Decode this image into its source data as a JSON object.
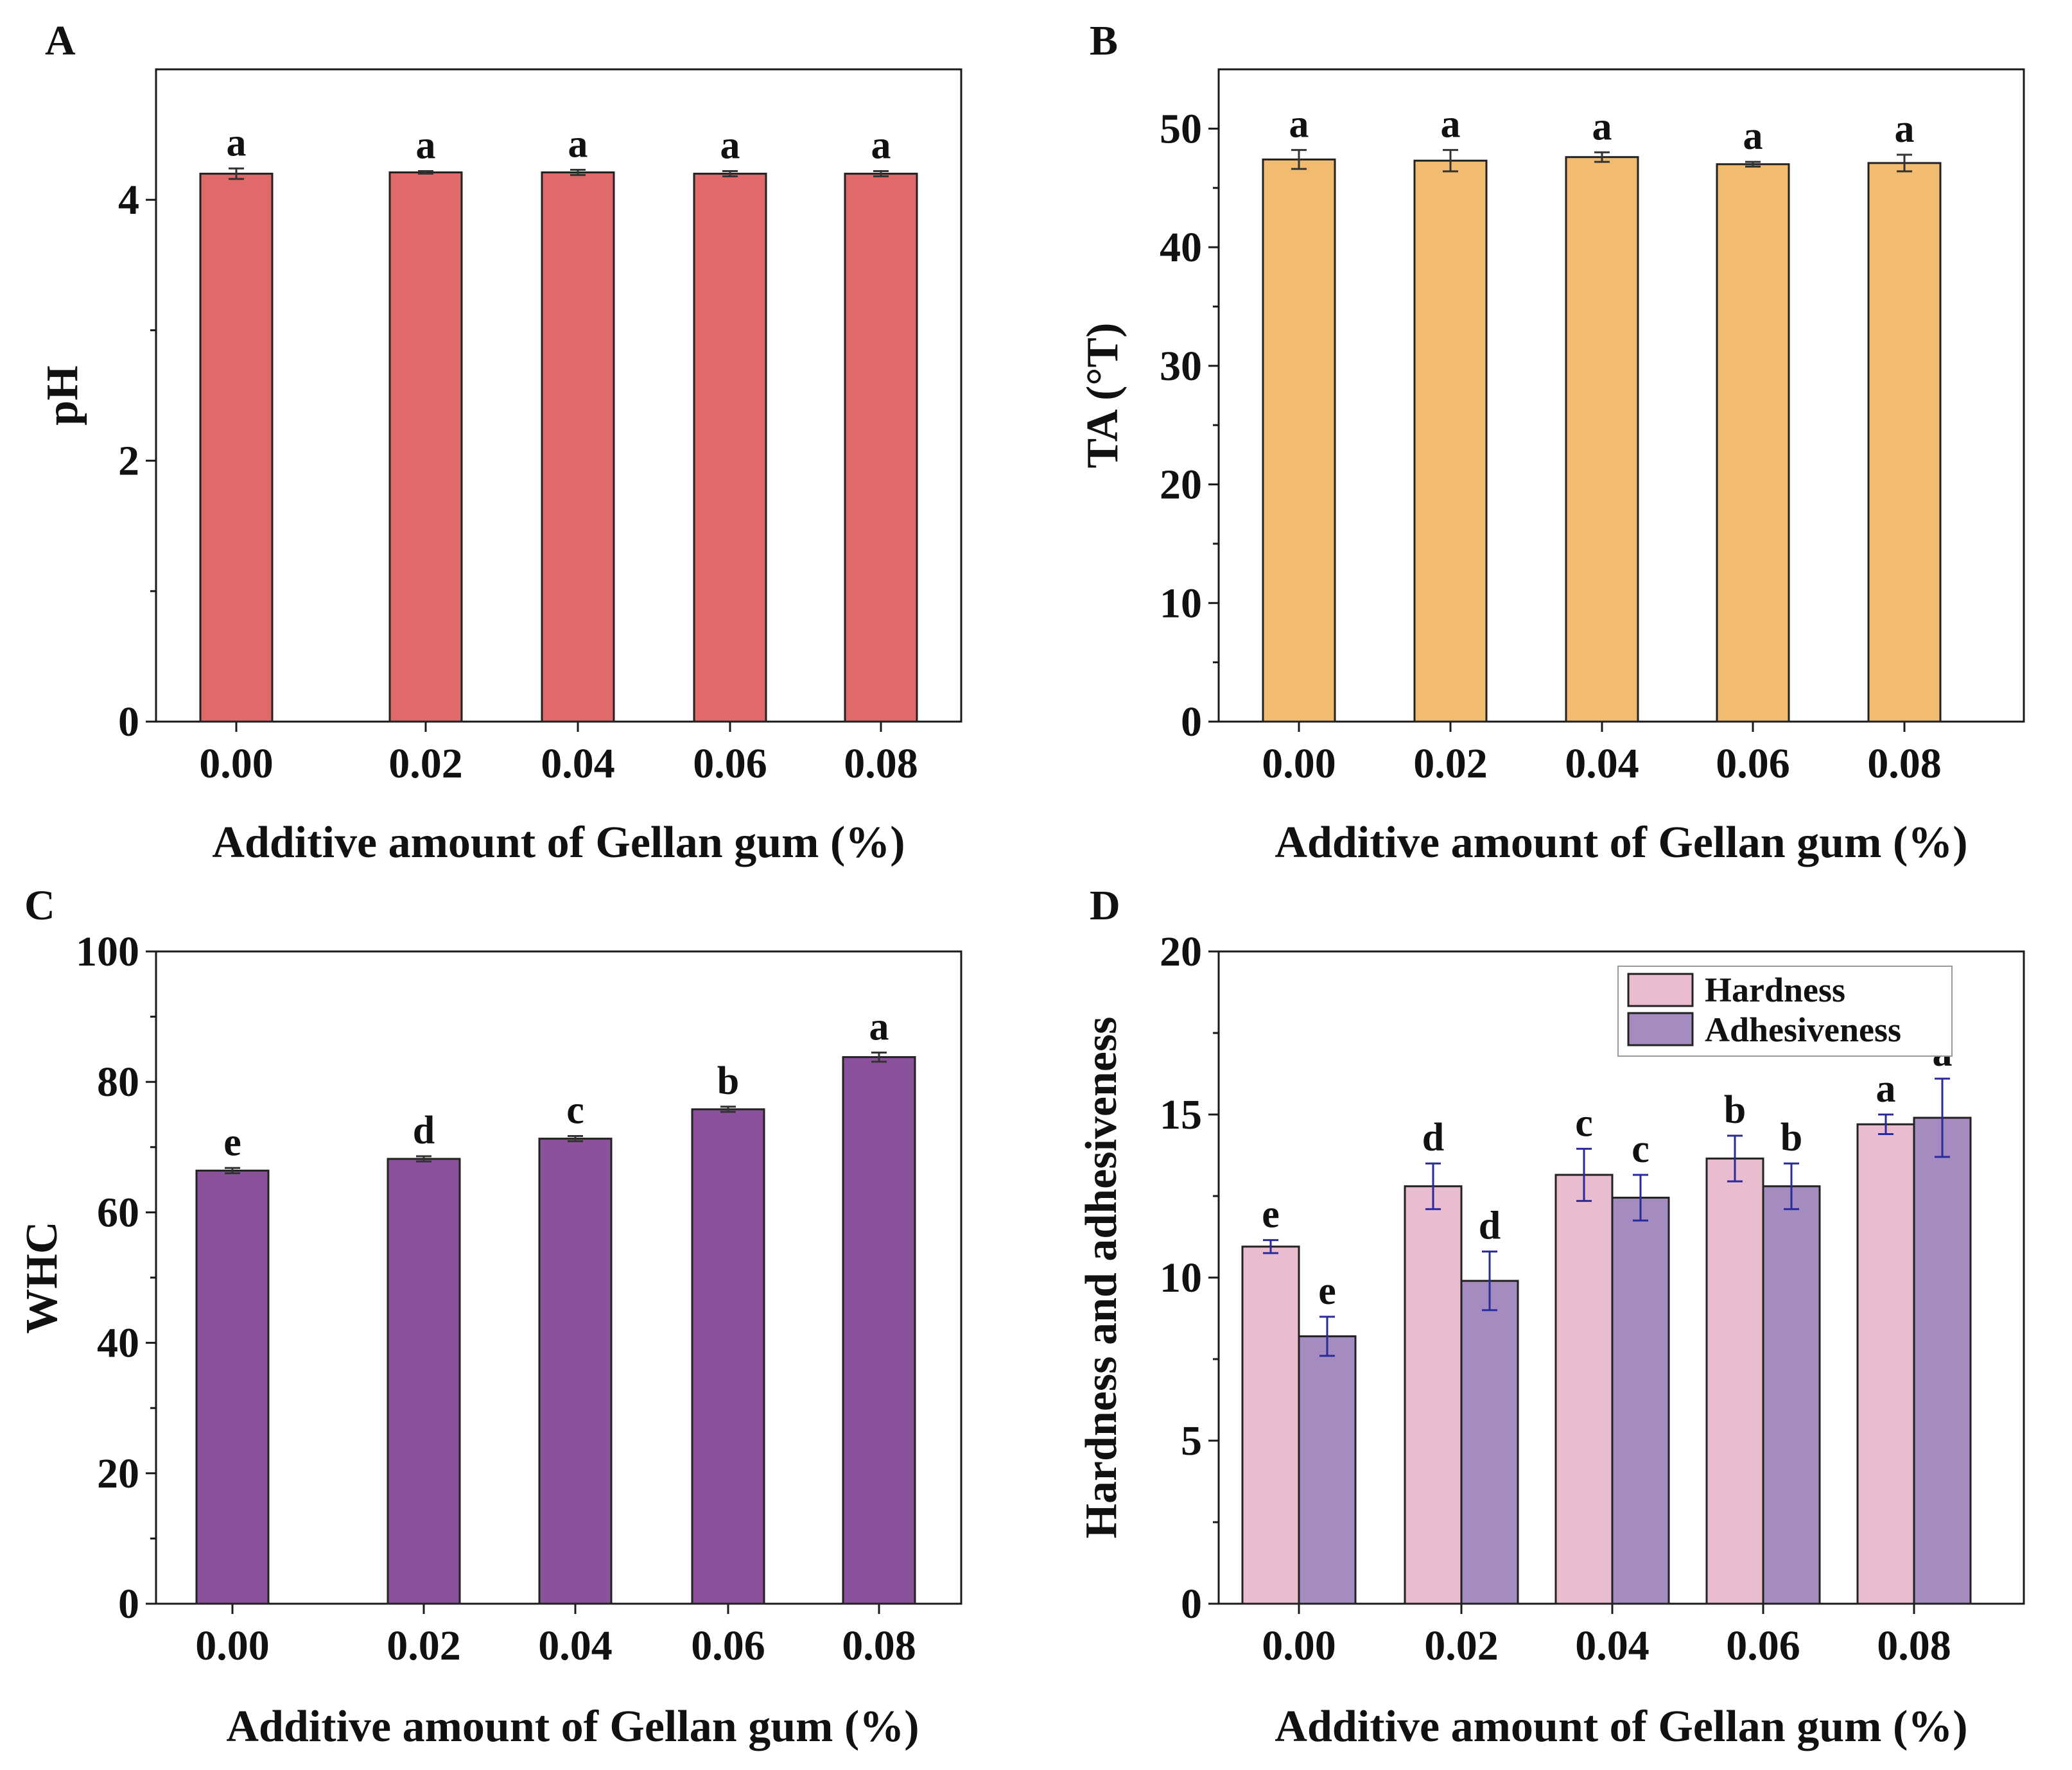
{
  "chart_data": [
    {
      "panel": "A",
      "type": "bar",
      "categories": [
        "0.00",
        "0.02",
        "0.04",
        "0.06",
        "0.08"
      ],
      "xlabel": "Additive amount of Gellan gum (%)",
      "ylabel": "pH",
      "ylim": [
        0,
        5
      ],
      "yticks": [
        0,
        2,
        4
      ],
      "ytick_labels": [
        "0",
        "2",
        "4"
      ],
      "series": [
        {
          "name": "pH",
          "color": "#e06a6a",
          "values": [
            4.2,
            4.21,
            4.21,
            4.2,
            4.2
          ],
          "errors": [
            0.04,
            0.01,
            0.02,
            0.02,
            0.02
          ],
          "sig": [
            "a",
            "a",
            "a",
            "a",
            "a"
          ]
        }
      ]
    },
    {
      "panel": "B",
      "type": "bar",
      "categories": [
        "0.00",
        "0.02",
        "0.04",
        "0.06",
        "0.08"
      ],
      "xlabel": "Additive amount of Gellan gum (%)",
      "ylabel": "TA (°T)",
      "ylim": [
        0,
        55
      ],
      "yticks": [
        0,
        10,
        20,
        30,
        40,
        50
      ],
      "ytick_labels": [
        "0",
        "10",
        "20",
        "30",
        "40",
        "50"
      ],
      "series": [
        {
          "name": "TA",
          "color": "#f2bc70",
          "values": [
            47.4,
            47.3,
            47.6,
            47.0,
            47.1
          ],
          "errors": [
            0.8,
            0.9,
            0.4,
            0.2,
            0.7
          ],
          "sig": [
            "a",
            "a",
            "a",
            "a",
            "a"
          ]
        }
      ]
    },
    {
      "panel": "C",
      "type": "bar",
      "categories": [
        "0.00",
        "0.02",
        "0.04",
        "0.06",
        "0.08"
      ],
      "xlabel": "Additive amount of Gellan gum (%)",
      "ylabel": "WHC",
      "ylim": [
        0,
        100
      ],
      "yticks": [
        0,
        20,
        40,
        60,
        80,
        100
      ],
      "ytick_labels": [
        "0",
        "20",
        "40",
        "60",
        "80",
        "100"
      ],
      "series": [
        {
          "name": "WHC",
          "color": "#8b519b",
          "values": [
            66.4,
            68.2,
            71.3,
            75.8,
            83.8
          ],
          "errors": [
            0.4,
            0.4,
            0.4,
            0.4,
            0.7
          ],
          "sig": [
            "e",
            "d",
            "c",
            "b",
            "a"
          ]
        }
      ]
    },
    {
      "panel": "D",
      "type": "bar",
      "categories": [
        "0.00",
        "0.02",
        "0.04",
        "0.06",
        "0.08"
      ],
      "xlabel": "Additive amount of Gellan gum (%)",
      "ylabel": "Hardness and adhesiveness",
      "ylim": [
        0,
        20
      ],
      "yticks": [
        0,
        5,
        10,
        15,
        20
      ],
      "ytick_labels": [
        "0",
        "5",
        "10",
        "15",
        "20"
      ],
      "legend_position": "top-right",
      "series": [
        {
          "name": "Hardness",
          "color": "#eabcd0",
          "values": [
            10.95,
            12.8,
            13.15,
            13.65,
            14.7
          ],
          "errors": [
            0.2,
            0.7,
            0.8,
            0.7,
            0.3
          ],
          "sig": [
            "e",
            "d",
            "c",
            "b",
            "a"
          ]
        },
        {
          "name": "Adhesiveness",
          "color": "#a58cc0",
          "values": [
            8.2,
            9.9,
            12.45,
            12.8,
            14.9
          ],
          "errors": [
            0.6,
            0.9,
            0.7,
            0.7,
            1.2
          ],
          "sig": [
            "e",
            "d",
            "c",
            "b",
            "a"
          ]
        }
      ]
    }
  ]
}
